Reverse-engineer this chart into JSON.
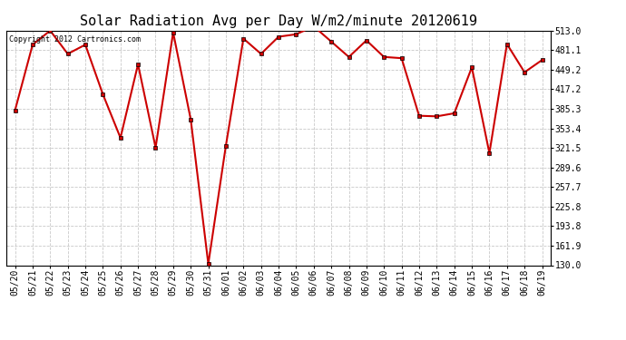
{
  "title": "Solar Radiation Avg per Day W/m2/minute 20120619",
  "copyright_text": "Copyright 2012 Cartronics.com",
  "labels": [
    "05/20",
    "05/21",
    "05/22",
    "05/23",
    "05/24",
    "05/25",
    "05/26",
    "05/27",
    "05/28",
    "05/29",
    "05/30",
    "05/31",
    "06/01",
    "06/02",
    "06/03",
    "06/04",
    "06/05",
    "06/06",
    "06/07",
    "06/08",
    "06/09",
    "06/10",
    "06/11",
    "06/12",
    "06/13",
    "06/14",
    "06/15",
    "06/16",
    "06/17",
    "06/18",
    "06/19"
  ],
  "values": [
    383,
    490,
    513,
    475,
    490,
    409,
    338,
    458,
    322,
    510,
    368,
    132,
    325,
    500,
    475,
    503,
    507,
    520,
    495,
    470,
    497,
    470,
    468,
    374,
    373,
    378,
    453,
    313,
    491,
    445,
    465
  ],
  "ylim": [
    130,
    513
  ],
  "yticks": [
    513.0,
    481.1,
    449.2,
    417.2,
    385.3,
    353.4,
    321.5,
    289.6,
    257.7,
    225.8,
    193.8,
    161.9,
    130.0
  ],
  "line_color": "#cc0000",
  "bg_color": "#ffffff",
  "grid_color": "#bbbbbb",
  "title_fontsize": 11,
  "tick_fontsize": 7,
  "copyright_fontsize": 6
}
